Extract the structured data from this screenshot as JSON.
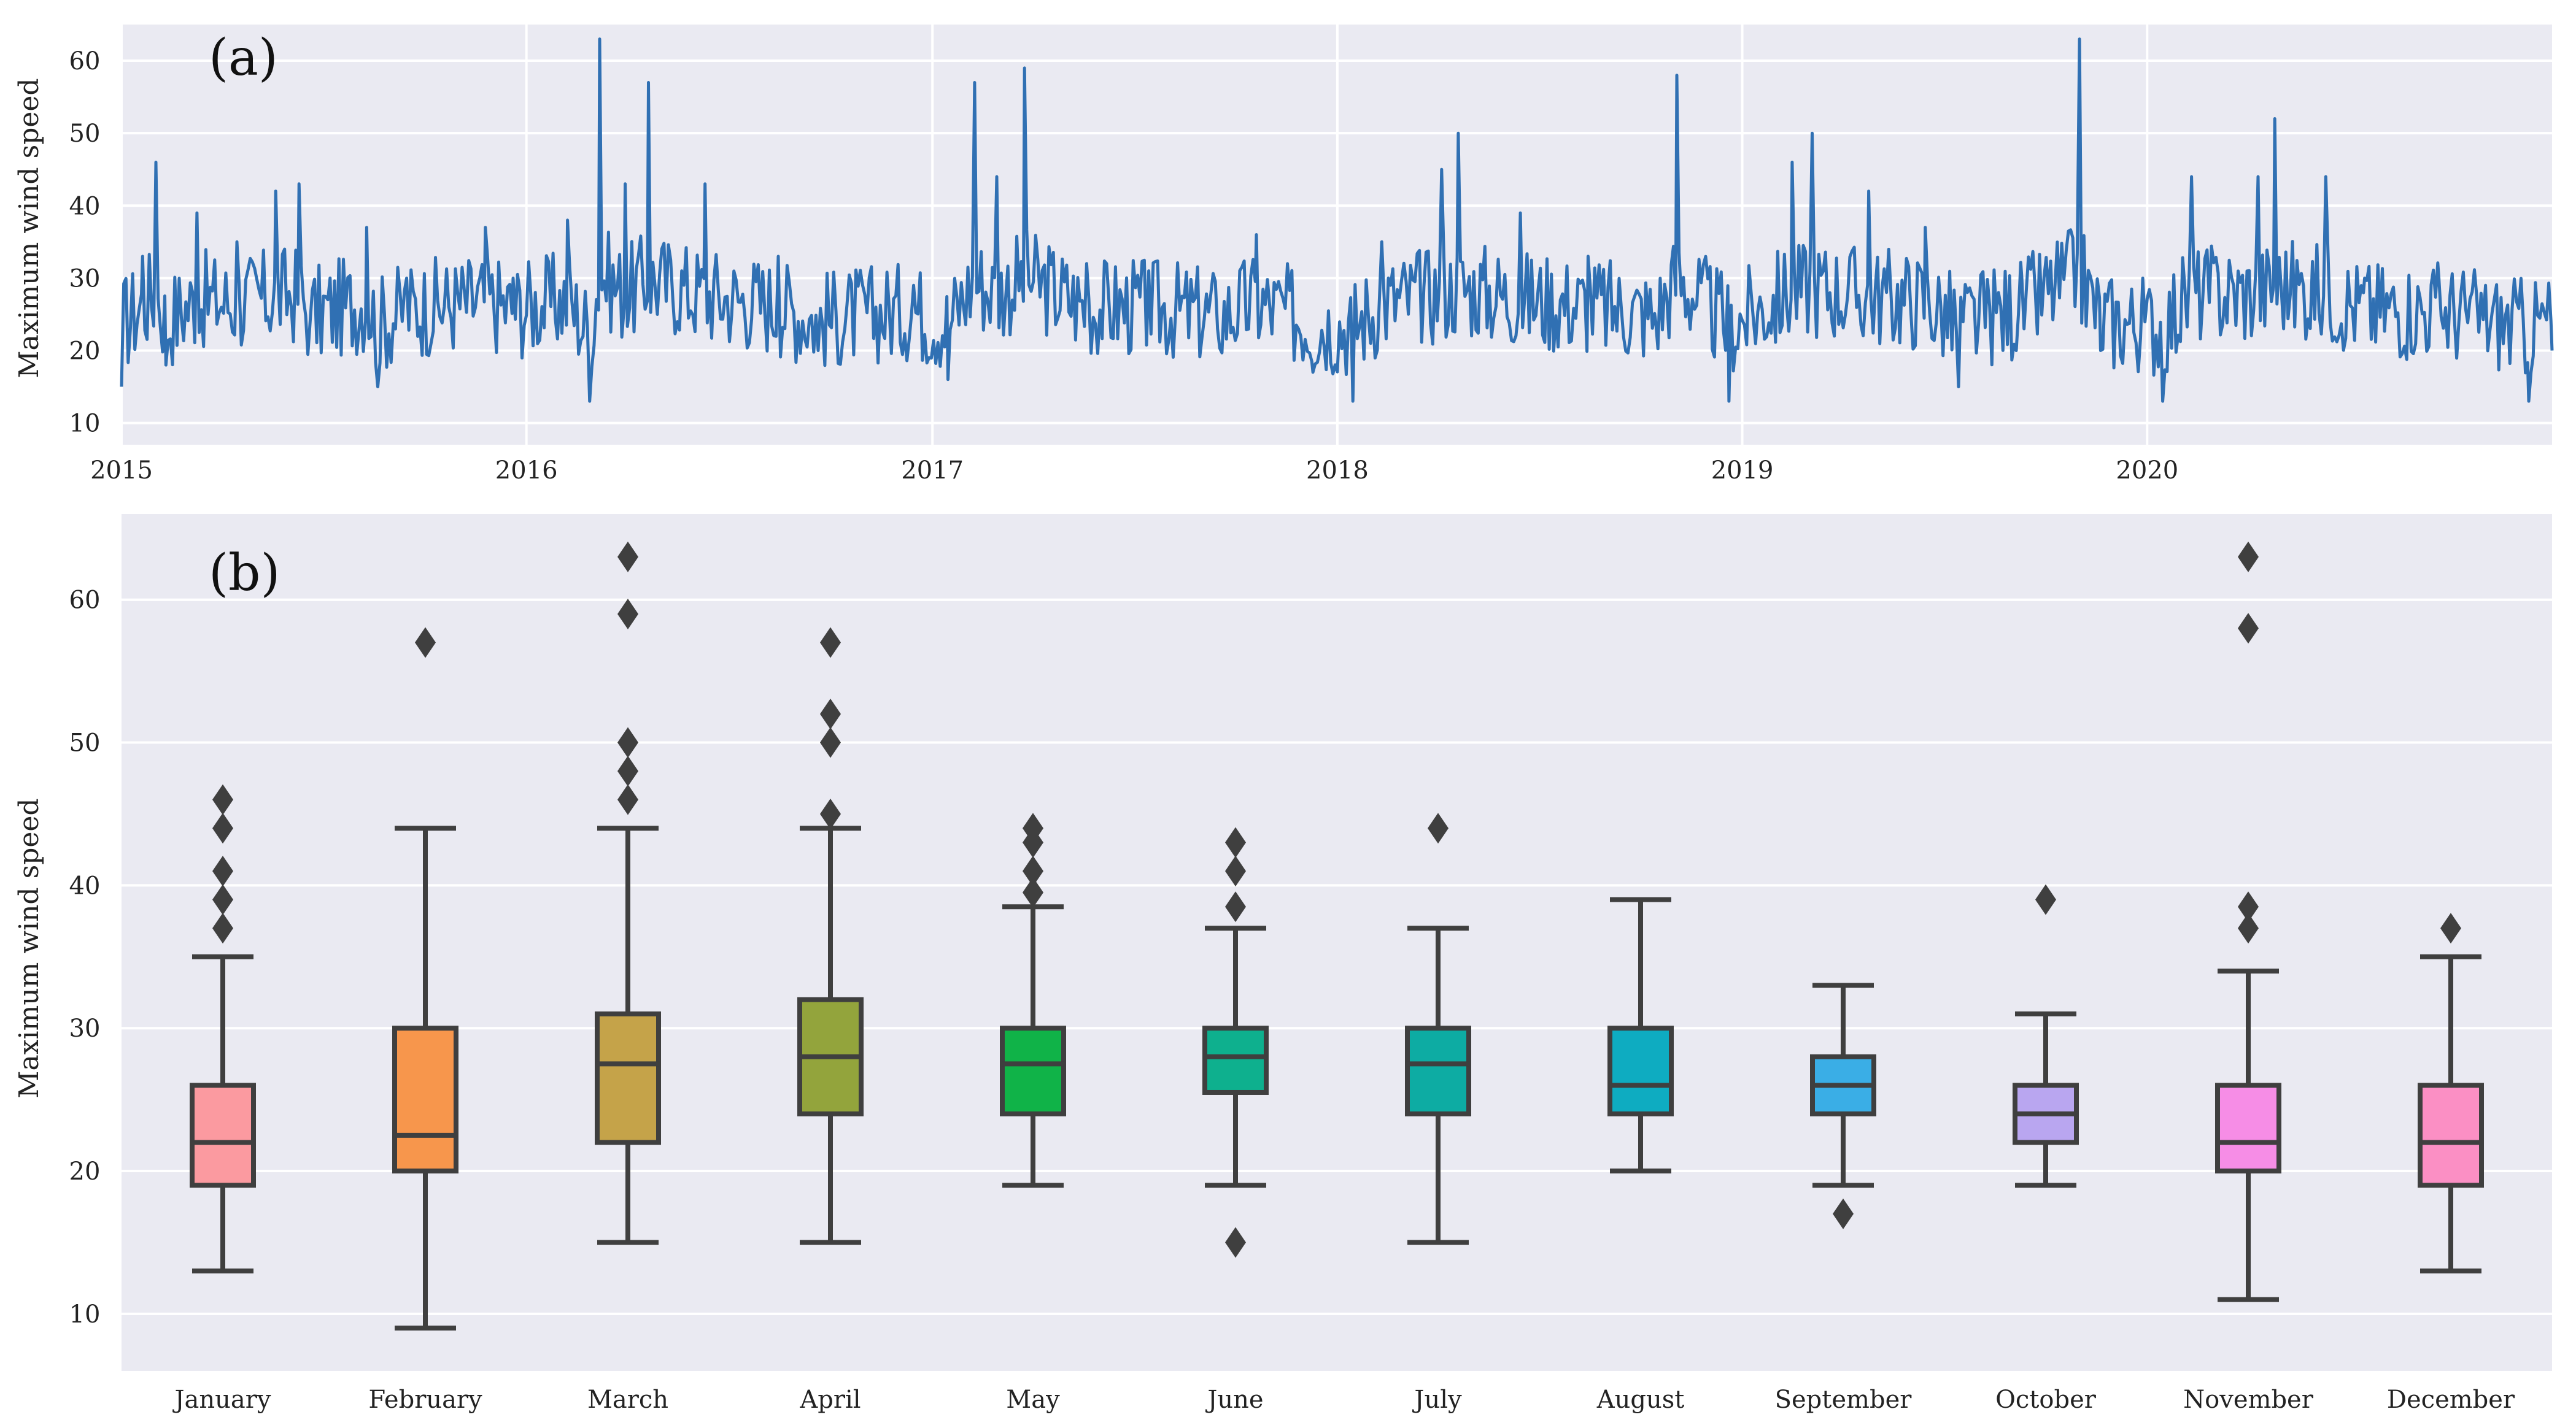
{
  "chart_data": [
    {
      "type": "line",
      "panel_label": "(a)",
      "ylabel": "Maximum wind speed",
      "x_range": [
        "2015-01-01",
        "2020-12-31"
      ],
      "ylim": [
        7,
        65
      ],
      "yticks": [
        10,
        20,
        30,
        40,
        50,
        60
      ],
      "xtick_labels": [
        "2015",
        "2016",
        "2017",
        "2018",
        "2019",
        "2020"
      ],
      "grid": true,
      "color": "#3070b3",
      "series": [
        {
          "points": [
            [
              "2015-01-01",
              15
            ],
            [
              "2015-01-20",
              33
            ],
            [
              "2015-02-01",
              46
            ],
            [
              "2015-02-10",
              18
            ],
            [
              "2015-03-10",
              39
            ],
            [
              "2015-04-15",
              35
            ],
            [
              "2015-05-20",
              42
            ],
            [
              "2015-06-10",
              43
            ],
            [
              "2015-06-20",
              24
            ],
            [
              "2015-08-10",
              37
            ],
            [
              "2015-08-20",
              15
            ],
            [
              "2015-09-15",
              30
            ],
            [
              "2015-11-25",
              37
            ],
            [
              "2015-12-20",
              30
            ],
            [
              "2016-02-07",
              38
            ],
            [
              "2016-02-27",
              8
            ],
            [
              "2016-03-07",
              63
            ],
            [
              "2016-03-30",
              43
            ],
            [
              "2016-04-20",
              57
            ],
            [
              "2016-06-10",
              43
            ],
            [
              "2016-08-15",
              33
            ],
            [
              "2016-09-20",
              20
            ],
            [
              "2016-12-15",
              29
            ],
            [
              "2017-01-15",
              16
            ],
            [
              "2017-02-08",
              57
            ],
            [
              "2017-02-28",
              44
            ],
            [
              "2017-03-25",
              59
            ],
            [
              "2017-05-20",
              32
            ],
            [
              "2017-07-15",
              31
            ],
            [
              "2017-09-15",
              23
            ],
            [
              "2017-10-20",
              36
            ],
            [
              "2017-12-10",
              17
            ],
            [
              "2018-01-15",
              13
            ],
            [
              "2018-02-10",
              35
            ],
            [
              "2018-04-05",
              45
            ],
            [
              "2018-04-20",
              50
            ],
            [
              "2018-06-15",
              39
            ],
            [
              "2018-08-15",
              33
            ],
            [
              "2018-10-15",
              24
            ],
            [
              "2018-11-03",
              58
            ],
            [
              "2018-12-20",
              13
            ],
            [
              "2019-02-15",
              46
            ],
            [
              "2019-03-05",
              50
            ],
            [
              "2019-04-25",
              42
            ],
            [
              "2019-06-15",
              37
            ],
            [
              "2019-07-15",
              15
            ],
            [
              "2019-09-10",
              30
            ],
            [
              "2019-11-01",
              63
            ],
            [
              "2019-11-20",
              20
            ],
            [
              "2020-01-15",
              13
            ],
            [
              "2020-02-10",
              44
            ],
            [
              "2020-04-10",
              44
            ],
            [
              "2020-04-25",
              52
            ],
            [
              "2020-06-10",
              44
            ],
            [
              "2020-07-15",
              30
            ],
            [
              "2020-09-20",
              30
            ],
            [
              "2020-12-10",
              11
            ],
            [
              "2020-12-31",
              20
            ]
          ]
        }
      ]
    },
    {
      "type": "box",
      "panel_label": "(b)",
      "ylabel": "Maximum wind speed",
      "ylim": [
        6,
        66
      ],
      "yticks": [
        10,
        20,
        30,
        40,
        50,
        60
      ],
      "grid": true,
      "categories": [
        "January",
        "February",
        "March",
        "April",
        "May",
        "June",
        "July",
        "August",
        "September",
        "October",
        "November",
        "December"
      ],
      "boxes": [
        {
          "whisker_low": 13,
          "q1": 19,
          "median": 22,
          "q3": 26,
          "whisker_high": 35,
          "outliers": [
            37,
            39,
            41,
            44,
            46
          ],
          "color": "#fb9aa0"
        },
        {
          "whisker_low": 9,
          "q1": 20,
          "median": 22.5,
          "q3": 30,
          "whisker_high": 44,
          "outliers": [
            57
          ],
          "color": "#f7964c"
        },
        {
          "whisker_low": 15,
          "q1": 22,
          "median": 27.5,
          "q3": 31,
          "whisker_high": 44,
          "outliers": [
            46,
            48,
            50,
            59,
            63
          ],
          "color": "#c5a349"
        },
        {
          "whisker_low": 15,
          "q1": 24,
          "median": 28,
          "q3": 32,
          "whisker_high": 44,
          "outliers": [
            45,
            50,
            52,
            57
          ],
          "color": "#93a43c"
        },
        {
          "whisker_low": 19,
          "q1": 24,
          "median": 27.5,
          "q3": 30,
          "whisker_high": 38.5,
          "outliers": [
            39.5,
            41,
            43,
            44
          ],
          "color": "#10b348"
        },
        {
          "whisker_low": 19,
          "q1": 25.5,
          "median": 28,
          "q3": 30,
          "whisker_high": 37,
          "outliers": [
            15,
            38.5,
            41,
            43
          ],
          "color": "#0eb08e"
        },
        {
          "whisker_low": 15,
          "q1": 24,
          "median": 27.5,
          "q3": 30,
          "whisker_high": 37,
          "outliers": [
            44
          ],
          "color": "#0daca3"
        },
        {
          "whisker_low": 20,
          "q1": 24,
          "median": 26,
          "q3": 30,
          "whisker_high": 39,
          "outliers": [],
          "color": "#0eacc1"
        },
        {
          "whisker_low": 19,
          "q1": 24,
          "median": 26,
          "q3": 28,
          "whisker_high": 33,
          "outliers": [
            17
          ],
          "color": "#3aaee6"
        },
        {
          "whisker_low": 19,
          "q1": 22,
          "median": 24,
          "q3": 26,
          "whisker_high": 31,
          "outliers": [
            39
          ],
          "color": "#b9a6f0"
        },
        {
          "whisker_low": 11,
          "q1": 20,
          "median": 22,
          "q3": 26,
          "whisker_high": 34,
          "outliers": [
            37,
            38.5,
            58,
            63
          ],
          "color": "#f68de6"
        },
        {
          "whisker_low": 13,
          "q1": 19,
          "median": 22,
          "q3": 26,
          "whisker_high": 35,
          "outliers": [
            37
          ],
          "color": "#fb8fc4"
        }
      ]
    }
  ]
}
